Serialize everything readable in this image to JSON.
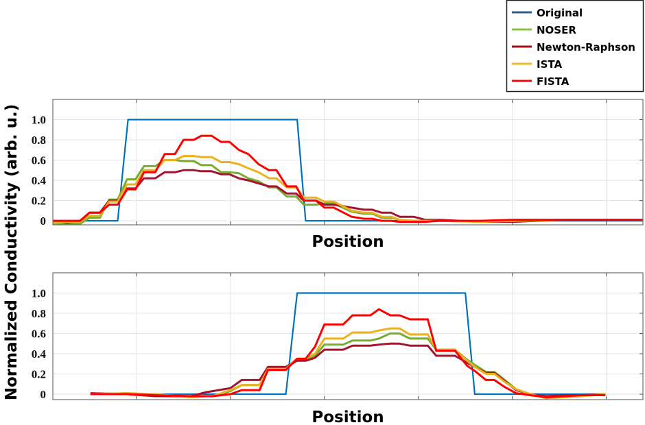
{
  "chart_data": [
    {
      "type": "line",
      "xlabel": "Position",
      "ylabel": "Normalized Conductivity (arb. u.)",
      "ylim": [
        -0.04,
        1.2
      ],
      "xlim": [
        0.11,
        6.39
      ],
      "yticks": [
        "0",
        "0.2",
        "0.4",
        "0.6",
        "0.8",
        "1.0"
      ],
      "ytick_values": [
        0,
        0.2,
        0.4,
        0.6,
        0.8,
        1.0
      ],
      "xgrid_values": [
        1,
        2,
        3,
        4,
        5,
        6
      ],
      "grid": true,
      "x": [
        0.11,
        0.26,
        0.4,
        0.5,
        0.61,
        0.71,
        0.8,
        0.9,
        0.99,
        1.08,
        1.2,
        1.3,
        1.41,
        1.5,
        1.61,
        1.69,
        1.8,
        1.9,
        1.99,
        2.09,
        2.19,
        2.3,
        2.41,
        2.49,
        2.6,
        2.7,
        2.78,
        2.91,
        3.0,
        3.1,
        3.29,
        3.42,
        3.51,
        3.61,
        3.71,
        3.8,
        3.95,
        4.07,
        4.22,
        4.66,
        5.02,
        5.53,
        6.39
      ],
      "series": [
        {
          "name": "Original",
          "color": "#0072BD",
          "x": [
            0.11,
            0.8,
            0.91,
            2.71,
            2.8,
            6.39
          ],
          "values": [
            0,
            0,
            1,
            1,
            0,
            0
          ]
        },
        {
          "name": "NOSER",
          "color": "#77AC30",
          "values": [
            -0.03,
            -0.03,
            -0.03,
            0.03,
            0.03,
            0.21,
            0.21,
            0.41,
            0.41,
            0.54,
            0.54,
            0.6,
            0.6,
            0.59,
            0.59,
            0.55,
            0.55,
            0.48,
            0.48,
            0.47,
            0.42,
            0.39,
            0.33,
            0.33,
            0.24,
            0.24,
            0.16,
            0.16,
            0.17,
            0.17,
            0.09,
            0.07,
            0.07,
            0.03,
            0.03,
            0.01,
            0,
            0,
            0,
            -0.01,
            0,
            0.01,
            0.01
          ]
        },
        {
          "name": "Newton-Raphson",
          "color": "#A2142F",
          "values": [
            0,
            -0.02,
            0,
            0.08,
            0.08,
            0.2,
            0.2,
            0.32,
            0.32,
            0.42,
            0.42,
            0.48,
            0.48,
            0.5,
            0.5,
            0.49,
            0.49,
            0.46,
            0.46,
            0.42,
            0.4,
            0.37,
            0.34,
            0.34,
            0.27,
            0.27,
            0.2,
            0.2,
            0.16,
            0.16,
            0.13,
            0.11,
            0.11,
            0.08,
            0.08,
            0.04,
            0.04,
            0.01,
            0.01,
            -0.01,
            -0.01,
            0.01,
            0.01
          ]
        },
        {
          "name": "ISTA",
          "color": "#EDB120",
          "values": [
            -0.02,
            -0.01,
            -0.01,
            0.05,
            0.05,
            0.19,
            0.19,
            0.36,
            0.36,
            0.5,
            0.5,
            0.6,
            0.6,
            0.64,
            0.64,
            0.63,
            0.63,
            0.58,
            0.58,
            0.56,
            0.52,
            0.48,
            0.42,
            0.42,
            0.33,
            0.33,
            0.23,
            0.23,
            0.19,
            0.19,
            0.1,
            0.08,
            0.08,
            0.04,
            0.04,
            0.01,
            0,
            0,
            0,
            -0.01,
            0,
            0.01,
            0.01
          ]
        },
        {
          "name": "FISTA",
          "color": "#FF0000",
          "values": [
            0,
            0,
            0,
            0.08,
            0.08,
            0.16,
            0.16,
            0.31,
            0.31,
            0.48,
            0.48,
            0.66,
            0.66,
            0.8,
            0.8,
            0.84,
            0.84,
            0.78,
            0.78,
            0.7,
            0.66,
            0.56,
            0.5,
            0.5,
            0.34,
            0.34,
            0.2,
            0.2,
            0.13,
            0.13,
            0.04,
            0.02,
            0.02,
            0,
            0,
            -0.01,
            -0.01,
            -0.01,
            0,
            0,
            0.01,
            0.01,
            0.01
          ]
        }
      ]
    },
    {
      "type": "line",
      "xlabel": "Position",
      "ylabel": "Normalized Conductivity (arb. u.)",
      "ylim": [
        -0.054,
        1.2
      ],
      "xlim": [
        0.11,
        6.39
      ],
      "yticks": [
        "0",
        "0.2",
        "0.4",
        "0.6",
        "0.8",
        "1.0"
      ],
      "ytick_values": [
        0,
        0.2,
        0.4,
        0.6,
        0.8,
        1.0
      ],
      "xgrid_values": [
        1,
        2,
        3,
        4,
        5,
        6
      ],
      "grid": true,
      "x": [
        0.51,
        0.9,
        1.2,
        1.58,
        1.74,
        1.81,
        2.0,
        2.12,
        2.31,
        2.4,
        2.59,
        2.71,
        2.8,
        2.9,
        3.0,
        3.2,
        3.3,
        3.49,
        3.58,
        3.7,
        3.8,
        3.91,
        4.1,
        4.19,
        4.39,
        4.52,
        4.6,
        4.72,
        4.81,
        4.92,
        5.04,
        5.19,
        5.36,
        5.55,
        5.74,
        5.99
      ],
      "series": [
        {
          "name": "Original",
          "color": "#0072BD",
          "x": [
            0.51,
            2.59,
            2.71,
            4.5,
            4.6,
            5.99
          ],
          "values": [
            0,
            0,
            1,
            1,
            0,
            0
          ]
        },
        {
          "name": "NOSER",
          "color": "#77AC30",
          "values": [
            0,
            0.01,
            -0.01,
            -0.03,
            -0.02,
            -0.02,
            0.03,
            0.09,
            0.09,
            0.26,
            0.26,
            0.35,
            0.35,
            0.38,
            0.49,
            0.49,
            0.53,
            0.53,
            0.55,
            0.6,
            0.6,
            0.55,
            0.55,
            0.44,
            0.44,
            0.34,
            0.29,
            0.22,
            0.22,
            0.14,
            0.05,
            0,
            -0.03,
            -0.02,
            -0.01,
            0
          ]
        },
        {
          "name": "Newton-Raphson",
          "color": "#A2142F",
          "values": [
            0.01,
            0,
            -0.02,
            -0.02,
            0.02,
            0.03,
            0.06,
            0.14,
            0.14,
            0.27,
            0.27,
            0.33,
            0.33,
            0.36,
            0.44,
            0.44,
            0.48,
            0.48,
            0.49,
            0.5,
            0.5,
            0.48,
            0.48,
            0.38,
            0.38,
            0.31,
            0.27,
            0.21,
            0.21,
            0.13,
            0.04,
            0,
            -0.02,
            -0.01,
            -0.01,
            0
          ]
        },
        {
          "name": "ISTA",
          "color": "#EDB120",
          "values": [
            0,
            0.01,
            0,
            -0.03,
            -0.02,
            -0.02,
            0.04,
            0.09,
            0.09,
            0.25,
            0.25,
            0.35,
            0.35,
            0.4,
            0.55,
            0.55,
            0.61,
            0.61,
            0.63,
            0.65,
            0.65,
            0.59,
            0.59,
            0.44,
            0.44,
            0.33,
            0.27,
            0.2,
            0.2,
            0.12,
            0.05,
            0,
            -0.04,
            -0.03,
            -0.02,
            0
          ]
        },
        {
          "name": "FISTA",
          "color": "#FF0000",
          "values": [
            0,
            0,
            -0.01,
            -0.02,
            -0.02,
            -0.02,
            0,
            0.04,
            0.04,
            0.24,
            0.24,
            0.35,
            0.35,
            0.47,
            0.69,
            0.69,
            0.78,
            0.78,
            0.84,
            0.78,
            0.78,
            0.74,
            0.74,
            0.43,
            0.43,
            0.28,
            0.23,
            0.14,
            0.14,
            0.07,
            0.01,
            -0.01,
            -0.03,
            -0.02,
            -0.01,
            -0.01
          ]
        }
      ]
    }
  ],
  "legend": {
    "placement": "top-right",
    "items": [
      {
        "label": "Original",
        "color": "#2E5F8A"
      },
      {
        "label": "NOSER",
        "color": "#8BC34A"
      },
      {
        "label": "Newton-Raphson",
        "color": "#A01010"
      },
      {
        "label": "ISTA",
        "color": "#F0B82A"
      },
      {
        "label": "FISTA",
        "color": "#E81010"
      }
    ]
  },
  "shared_ylabel": "Normalized Conductivity (arb. u.)"
}
